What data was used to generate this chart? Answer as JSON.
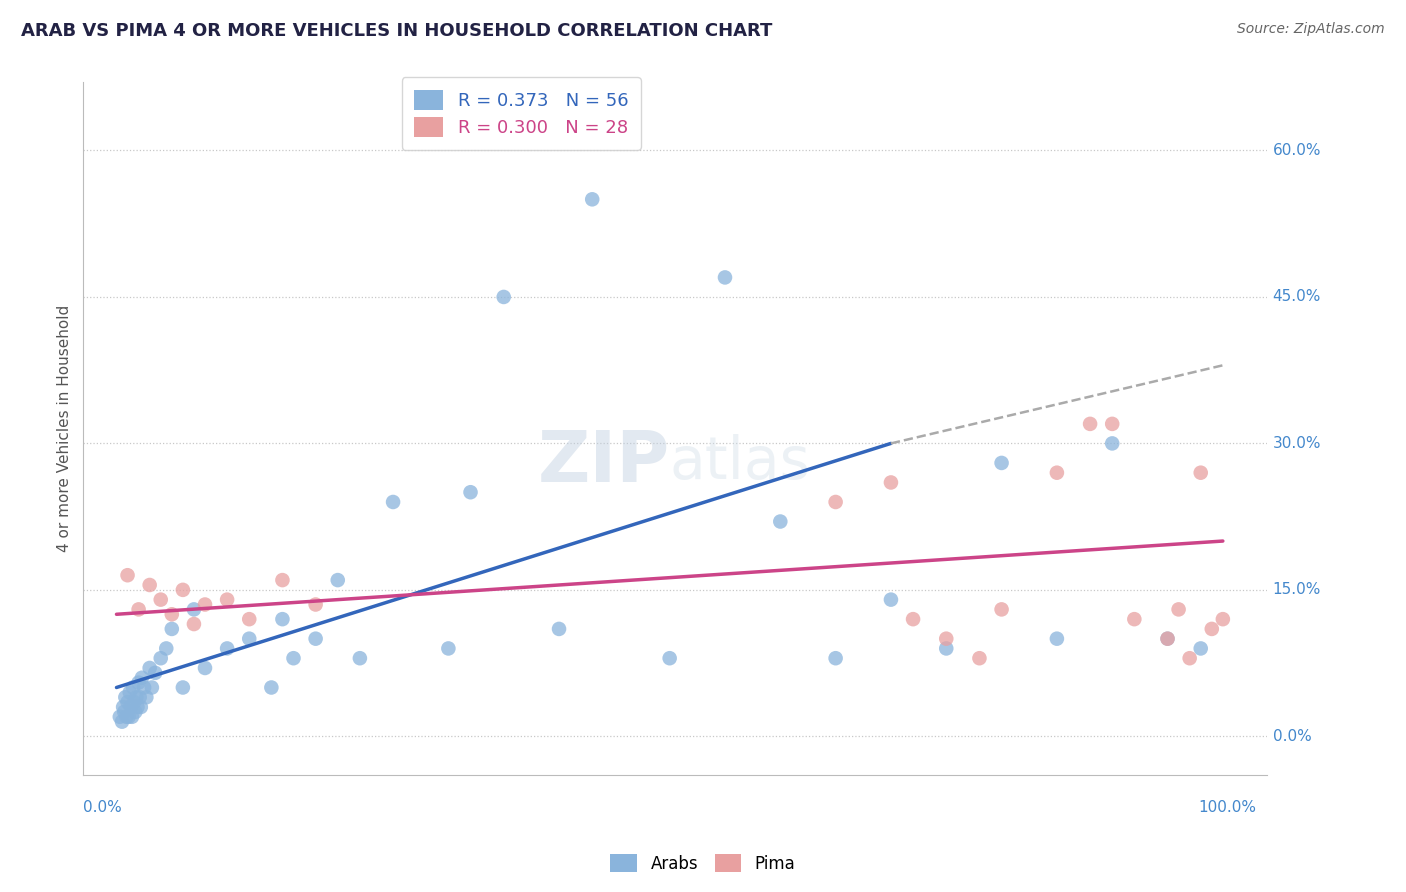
{
  "title": "ARAB VS PIMA 4 OR MORE VEHICLES IN HOUSEHOLD CORRELATION CHART",
  "source": "Source: ZipAtlas.com",
  "ylabel": "4 or more Vehicles in Household",
  "yticks": [
    0.0,
    15.0,
    30.0,
    45.0,
    60.0
  ],
  "ytick_labels": [
    "0.0%",
    "15.0%",
    "30.0%",
    "45.0%",
    "60.0%"
  ],
  "xlim": [
    0.0,
    100.0
  ],
  "ylim": [
    0.0,
    65.0
  ],
  "arab_color": "#8ab4dc",
  "pima_color": "#e8a0a0",
  "arab_line_color": "#3366bb",
  "pima_line_color": "#cc4488",
  "arab_R": 0.373,
  "arab_N": 56,
  "pima_R": 0.3,
  "pima_N": 28,
  "grid_color": "#c8c8c8",
  "background_color": "#ffffff",
  "watermark_zip": "ZIP",
  "watermark_atlas": "atlas",
  "arab_points_x": [
    0.3,
    0.5,
    0.6,
    0.7,
    0.8,
    0.9,
    1.0,
    1.1,
    1.2,
    1.3,
    1.4,
    1.5,
    1.6,
    1.7,
    1.8,
    1.9,
    2.0,
    2.1,
    2.2,
    2.3,
    2.5,
    2.7,
    3.0,
    3.2,
    3.5,
    4.0,
    4.5,
    5.0,
    6.0,
    7.0,
    8.0,
    10.0,
    12.0,
    14.0,
    15.0,
    16.0,
    18.0,
    20.0,
    22.0,
    25.0,
    30.0,
    32.0,
    35.0,
    40.0,
    43.0,
    50.0,
    55.0,
    60.0,
    65.0,
    70.0,
    75.0,
    80.0,
    85.0,
    90.0,
    95.0,
    98.0
  ],
  "arab_points_y": [
    2.0,
    1.5,
    3.0,
    2.5,
    4.0,
    2.0,
    3.5,
    2.0,
    4.5,
    3.0,
    2.0,
    5.0,
    3.5,
    2.5,
    4.0,
    3.0,
    5.5,
    4.0,
    3.0,
    6.0,
    5.0,
    4.0,
    7.0,
    5.0,
    6.5,
    8.0,
    9.0,
    11.0,
    5.0,
    13.0,
    7.0,
    9.0,
    10.0,
    5.0,
    12.0,
    8.0,
    10.0,
    16.0,
    8.0,
    24.0,
    9.0,
    25.0,
    45.0,
    11.0,
    55.0,
    8.0,
    47.0,
    22.0,
    8.0,
    14.0,
    9.0,
    28.0,
    10.0,
    30.0,
    10.0,
    9.0
  ],
  "pima_points_x": [
    1.0,
    2.0,
    3.0,
    4.0,
    5.0,
    6.0,
    7.0,
    8.0,
    10.0,
    12.0,
    15.0,
    18.0,
    65.0,
    70.0,
    72.0,
    75.0,
    78.0,
    80.0,
    85.0,
    88.0,
    90.0,
    92.0,
    95.0,
    96.0,
    97.0,
    98.0,
    99.0,
    100.0
  ],
  "pima_points_y": [
    16.5,
    13.0,
    15.5,
    14.0,
    12.5,
    15.0,
    11.5,
    13.5,
    14.0,
    12.0,
    16.0,
    13.5,
    24.0,
    26.0,
    12.0,
    10.0,
    8.0,
    13.0,
    27.0,
    32.0,
    32.0,
    12.0,
    10.0,
    13.0,
    8.0,
    27.0,
    11.0,
    12.0
  ],
  "arab_line_x0": 0.0,
  "arab_line_y0": 5.0,
  "arab_line_x1": 70.0,
  "arab_line_y1": 30.0,
  "arab_dash_x0": 70.0,
  "arab_dash_y0": 30.0,
  "arab_dash_x1": 100.0,
  "arab_dash_y1": 38.0,
  "pima_line_x0": 0.0,
  "pima_line_y0": 12.5,
  "pima_line_x1": 100.0,
  "pima_line_y1": 20.0
}
